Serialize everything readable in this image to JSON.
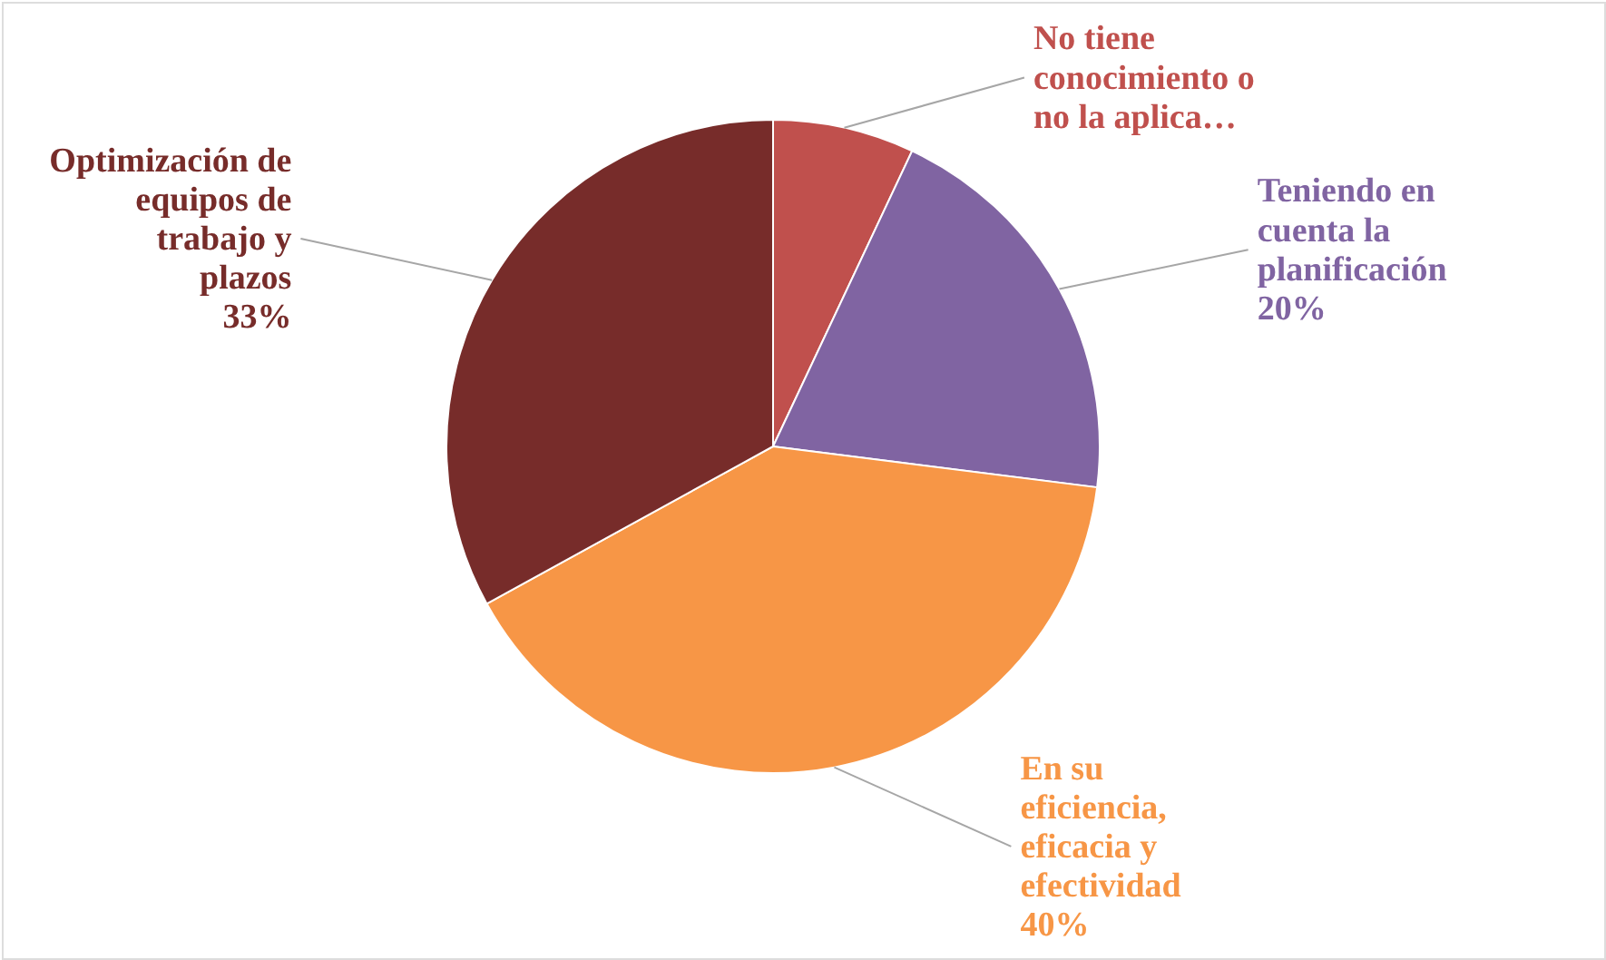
{
  "chart_data": {
    "type": "pie",
    "categories": [
      "No tiene conocimiento o no la aplica…",
      "Teniendo en cuenta la planificación",
      "En su eficiencia, eficacia y efectividad",
      "Optimización de equipos de trabajo y plazos"
    ],
    "values": [
      7,
      20,
      40,
      33
    ],
    "colors": [
      "#c0504d",
      "#8064a2",
      "#f79646",
      "#772c2a"
    ],
    "value_labels": [
      null,
      "20%",
      "40%",
      "33%"
    ]
  }
}
